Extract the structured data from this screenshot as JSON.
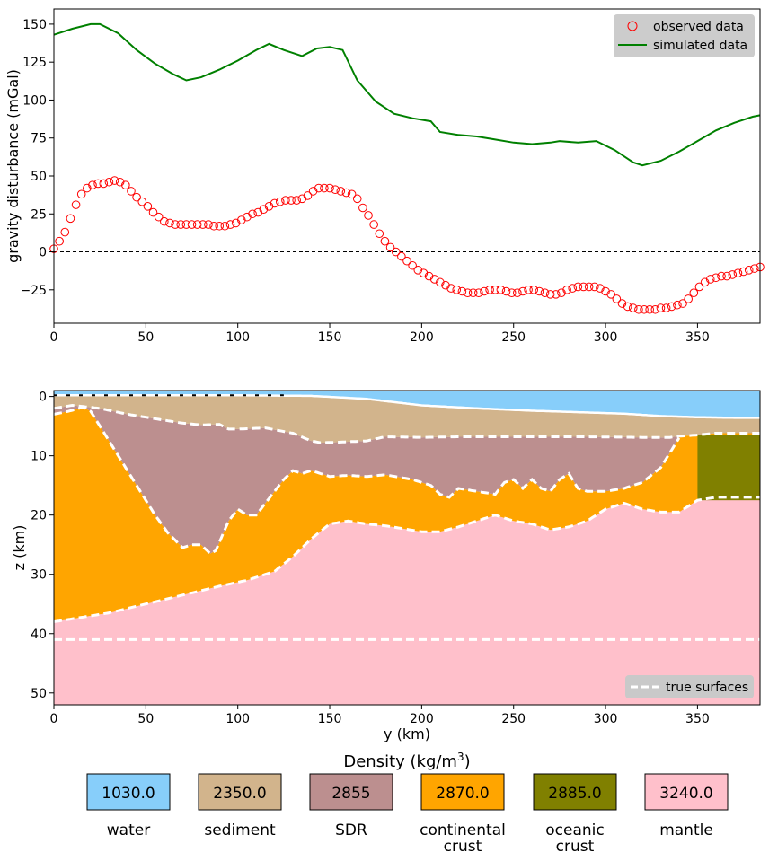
{
  "chart_data": [
    {
      "type": "line",
      "ylabel": "gravity disturbance (mGal)",
      "xlabel": "",
      "xlim": [
        0,
        384
      ],
      "ylim": [
        -47,
        160
      ],
      "xticks": [
        0,
        50,
        100,
        150,
        200,
        250,
        300,
        350
      ],
      "yticks": [
        -25,
        0,
        25,
        50,
        75,
        100,
        125,
        150
      ],
      "zero_line": 0,
      "legend_position": "top-right",
      "series": [
        {
          "name": "observed data",
          "style": "open-circle",
          "color": "#ff0000",
          "x": [
            0,
            3,
            6,
            9,
            12,
            15,
            18,
            21,
            24,
            27,
            30,
            33,
            36,
            39,
            42,
            45,
            48,
            51,
            54,
            57,
            60,
            63,
            66,
            69,
            72,
            75,
            78,
            81,
            84,
            87,
            90,
            93,
            96,
            99,
            102,
            105,
            108,
            111,
            114,
            117,
            120,
            123,
            126,
            129,
            132,
            135,
            138,
            141,
            144,
            147,
            150,
            153,
            156,
            159,
            162,
            165,
            168,
            171,
            174,
            177,
            180,
            183,
            186,
            189,
            192,
            195,
            198,
            201,
            204,
            207,
            210,
            213,
            216,
            219,
            222,
            225,
            228,
            231,
            234,
            237,
            240,
            243,
            246,
            249,
            252,
            255,
            258,
            261,
            264,
            267,
            270,
            273,
            276,
            279,
            282,
            285,
            288,
            291,
            294,
            297,
            300,
            303,
            306,
            309,
            312,
            315,
            318,
            321,
            324,
            327,
            330,
            333,
            336,
            339,
            342,
            345,
            348,
            351,
            354,
            357,
            360,
            363,
            366,
            369,
            372,
            375,
            378,
            381,
            384
          ],
          "y": [
            2,
            7,
            13,
            22,
            31,
            38,
            42,
            44,
            45,
            45,
            46,
            47,
            46,
            44,
            40,
            36,
            33,
            30,
            26,
            23,
            20,
            19,
            18,
            18,
            18,
            18,
            18,
            18,
            18,
            17,
            17,
            17,
            18,
            19,
            21,
            23,
            25,
            26,
            28,
            30,
            32,
            33,
            34,
            34,
            34,
            35,
            37,
            40,
            42,
            42,
            42,
            41,
            40,
            39,
            38,
            35,
            29,
            24,
            18,
            12,
            7,
            3,
            0,
            -3,
            -6,
            -9,
            -12,
            -14,
            -16,
            -18,
            -20,
            -22,
            -24,
            -25,
            -26,
            -27,
            -27,
            -27,
            -26,
            -25,
            -25,
            -25,
            -26,
            -27,
            -27,
            -26,
            -25,
            -25,
            -26,
            -27,
            -28,
            -28,
            -27,
            -25,
            -24,
            -23,
            -23,
            -23,
            -23,
            -24,
            -26,
            -28,
            -31,
            -34,
            -36,
            -37,
            -38,
            -38,
            -38,
            -38,
            -37,
            -37,
            -36,
            -35,
            -34,
            -31,
            -27,
            -23,
            -20,
            -18,
            -17,
            -16,
            -16,
            -15,
            -14,
            -13,
            -12,
            -11,
            -10
          ]
        },
        {
          "name": "simulated data",
          "style": "line",
          "color": "#008000",
          "x": [
            0,
            10,
            20,
            25,
            35,
            45,
            55,
            65,
            72,
            80,
            90,
            100,
            110,
            117,
            125,
            135,
            143,
            150,
            157,
            165,
            175,
            185,
            195,
            205,
            210,
            220,
            230,
            240,
            250,
            260,
            270,
            275,
            285,
            295,
            305,
            315,
            320,
            330,
            340,
            350,
            360,
            370,
            380,
            384
          ],
          "y": [
            143,
            147,
            150,
            150,
            144,
            133,
            124,
            117,
            113,
            115,
            120,
            126,
            133,
            137,
            133,
            129,
            134,
            135,
            133,
            113,
            99,
            91,
            88,
            86,
            79,
            77,
            76,
            74,
            72,
            71,
            72,
            73,
            72,
            73,
            67,
            59,
            57,
            60,
            66,
            73,
            80,
            85,
            89,
            90
          ]
        }
      ]
    },
    {
      "type": "area",
      "xlabel": "y (km)",
      "ylabel": "z (km)",
      "xlim": [
        0,
        384
      ],
      "ylim": [
        52,
        -1
      ],
      "xticks": [
        0,
        50,
        100,
        150,
        200,
        250,
        300,
        350
      ],
      "yticks": [
        0,
        10,
        20,
        30,
        40,
        50
      ],
      "legend_position": "bottom-right",
      "legend_label": "true surfaces",
      "surfaces": {
        "seafloor": {
          "x": [
            0,
            40,
            100,
            140,
            170,
            200,
            230,
            260,
            290,
            310,
            330,
            350,
            370,
            384
          ],
          "y": [
            -0.2,
            -0.2,
            -0.2,
            -0.1,
            0.4,
            1.5,
            2,
            2.4,
            2.7,
            2.9,
            3.3,
            3.5,
            3.6,
            3.6
          ]
        },
        "base_sediment": {
          "x": [
            0,
            10,
            25,
            40,
            50,
            60,
            70,
            80,
            90,
            95,
            100,
            115,
            130,
            140,
            145,
            155,
            170,
            180,
            200,
            220,
            240,
            260,
            290,
            320,
            335,
            340,
            350,
            360,
            370,
            384
          ],
          "y": [
            2,
            1.5,
            2,
            3,
            3.5,
            4,
            4.5,
            4.8,
            4.7,
            5.5,
            5.5,
            5.3,
            6.2,
            7.5,
            7.8,
            7.7,
            7.5,
            6.8,
            6.9,
            6.8,
            6.8,
            6.8,
            6.8,
            6.9,
            6.9,
            6.7,
            6.5,
            6.2,
            6.2,
            6.2
          ]
        },
        "base_sdr": {
          "x": [
            0,
            8,
            16,
            20,
            25,
            35,
            45,
            55,
            62,
            70,
            75,
            80,
            85,
            88,
            95,
            100,
            105,
            110,
            115,
            120,
            125,
            130,
            135,
            140,
            150,
            160,
            170,
            180,
            195,
            205,
            210,
            215,
            220,
            230,
            240,
            245,
            250,
            255,
            260,
            265,
            270,
            275,
            280,
            285,
            290,
            295,
            300,
            310,
            320,
            330,
            336,
            340
          ],
          "y": [
            3,
            2.5,
            1.8,
            2.5,
            5,
            10,
            15,
            20,
            23,
            25.5,
            25,
            25,
            26.5,
            26,
            21,
            19,
            20,
            20,
            18,
            16,
            14,
            12.5,
            13,
            12.5,
            13.5,
            13.3,
            13.5,
            13.2,
            14,
            15,
            16.5,
            17,
            15.5,
            16,
            16.5,
            14.5,
            14,
            15.5,
            14,
            15.5,
            16,
            14,
            13,
            15.5,
            16,
            16,
            16,
            15.5,
            14.5,
            12,
            9,
            7
          ]
        },
        "moho": {
          "x": [
            0,
            10,
            20,
            30,
            50,
            70,
            90,
            105,
            120,
            130,
            140,
            150,
            160,
            170,
            180,
            200,
            210,
            220,
            230,
            240,
            250,
            260,
            270,
            280,
            290,
            300,
            310,
            320,
            330,
            340,
            350,
            360,
            370,
            384
          ],
          "y": [
            38,
            37.5,
            37,
            36.5,
            35,
            33.5,
            32,
            31,
            29.5,
            27,
            24,
            21.5,
            21,
            21.5,
            21.8,
            22.8,
            22.8,
            22,
            21,
            20,
            21,
            21.5,
            22.5,
            22,
            21,
            19,
            18,
            19,
            19.5,
            19.5,
            17.5,
            17,
            17,
            17
          ]
        },
        "reference": {
          "x": [
            0,
            384
          ],
          "y": [
            41,
            41
          ]
        }
      },
      "oceanic_crust_x_start": 350,
      "true_surface_color": "#ffffff"
    }
  ],
  "density_legend": {
    "title": "Density (kg/m",
    "title_sup": "3",
    "title_tail": ")",
    "layers": [
      {
        "value": "1030.0",
        "name": "water",
        "name2": "",
        "color": "#87cefa"
      },
      {
        "value": "2350.0",
        "name": "sediment",
        "name2": "",
        "color": "#d2b48c"
      },
      {
        "value": "2855",
        "name": "SDR",
        "name2": "",
        "color": "#bc8f8f"
      },
      {
        "value": "2870.0",
        "name": "continental",
        "name2": "crust",
        "color": "#ffa500"
      },
      {
        "value": "2885.0",
        "name": "oceanic",
        "name2": "crust",
        "color": "#808000"
      },
      {
        "value": "3240.0",
        "name": "mantle",
        "name2": "",
        "color": "#ffc0cb"
      }
    ]
  }
}
